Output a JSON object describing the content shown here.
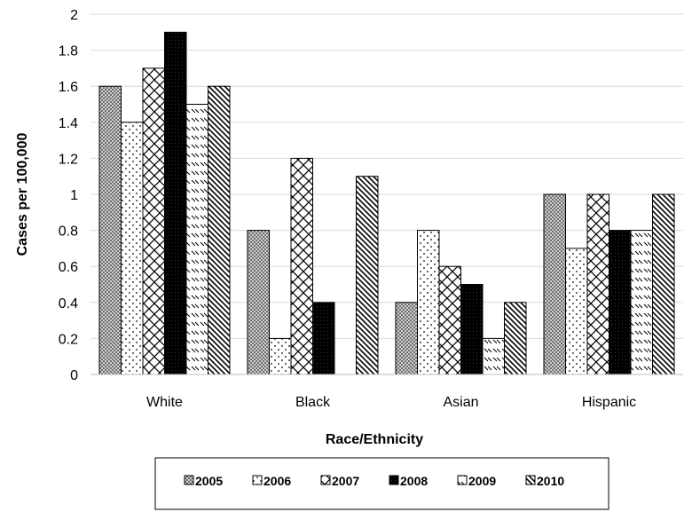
{
  "chart_data": {
    "type": "bar",
    "title": "",
    "xlabel": "Race/Ethnicity",
    "ylabel": "Cases per 100,000",
    "ylim": [
      0,
      2
    ],
    "yticks": [
      0,
      0.2,
      0.4,
      0.6,
      0.8,
      1,
      1.2,
      1.4,
      1.6,
      1.8,
      2
    ],
    "ytick_labels": [
      "0",
      "0.2",
      "0.4",
      "0.6",
      "0.8",
      "1",
      "1.2",
      "1.4",
      "1.6",
      "1.8",
      "2"
    ],
    "grid": "horizontal",
    "legend_position": "bottom",
    "categories": [
      "White",
      "Black",
      "Asian",
      "Hispanic"
    ],
    "series": [
      {
        "name": "2005",
        "pattern": "crosshatch-dense",
        "values": [
          1.6,
          0.8,
          0.4,
          1.0
        ]
      },
      {
        "name": "2006",
        "pattern": "dots",
        "values": [
          1.4,
          0.2,
          0.8,
          0.7
        ]
      },
      {
        "name": "2007",
        "pattern": "diagonal-crosshatch",
        "values": [
          1.7,
          1.2,
          0.6,
          1.0
        ]
      },
      {
        "name": "2008",
        "pattern": "solid-black",
        "values": [
          1.9,
          0.4,
          0.5,
          0.8
        ]
      },
      {
        "name": "2009",
        "pattern": "dashed-diagonal",
        "values": [
          1.5,
          0.0,
          0.2,
          0.8
        ]
      },
      {
        "name": "2010",
        "pattern": "diagonal-stripes",
        "values": [
          1.6,
          1.1,
          0.4,
          1.0
        ]
      }
    ]
  }
}
